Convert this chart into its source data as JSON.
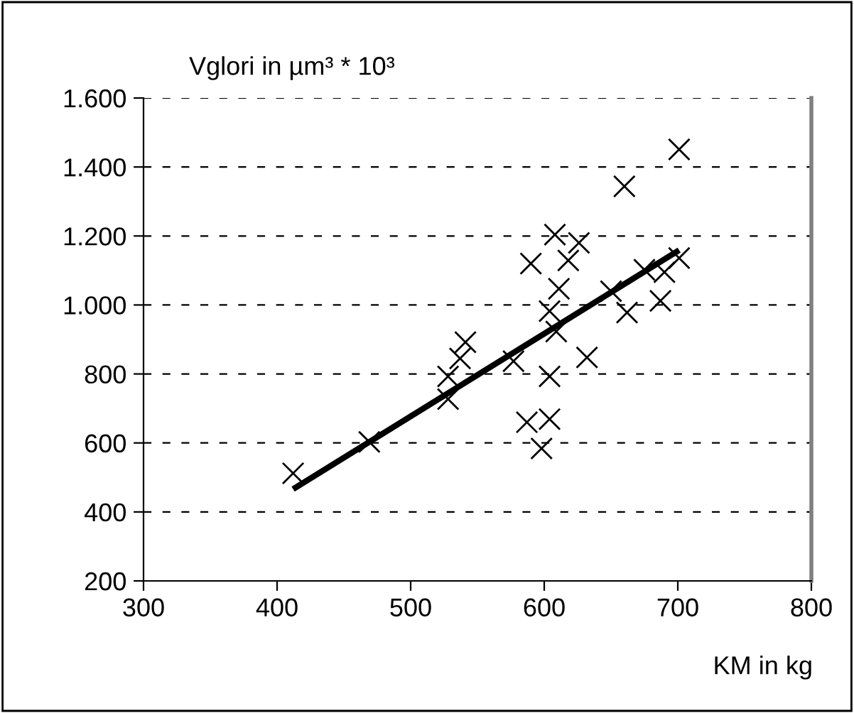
{
  "chart_data": {
    "type": "scatter",
    "ylabel": "Vglori in µm³ * 10³",
    "xlabel": "KM in kg",
    "xlim": [
      300,
      800
    ],
    "xticks": [
      300,
      400,
      500,
      600,
      700,
      800
    ],
    "ylim": [
      200,
      1600
    ],
    "yticks": [
      {
        "value": 200,
        "label": "200"
      },
      {
        "value": 400,
        "label": "400"
      },
      {
        "value": 600,
        "label": "600"
      },
      {
        "value": 800,
        "label": "800"
      },
      {
        "value": 1000,
        "label": "1.000"
      },
      {
        "value": 1200,
        "label": "1.200"
      },
      {
        "value": 1400,
        "label": "1.400"
      },
      {
        "value": 1600,
        "label": "1.600"
      }
    ],
    "grid": "y",
    "series": [
      {
        "marker": "cross",
        "color": "#000000",
        "x": [
          412,
          469,
          528,
          528,
          541,
          537,
          577,
          604,
          587,
          604,
          598,
          604,
          611,
          701,
          660,
          608,
          626,
          590,
          618,
          609,
          632,
          650,
          675,
          690,
          687,
          662,
          701
        ],
        "values": [
          512,
          603,
          793,
          727,
          892,
          845,
          837,
          793,
          660,
          669,
          584,
          982,
          1047,
          1451,
          1344,
          1204,
          1180,
          1120,
          1129,
          923,
          848,
          1040,
          1102,
          1095,
          1012,
          978,
          1136
        ]
      },
      {
        "type": "line",
        "color": "#000000",
        "x": [
          412,
          701
        ],
        "values": [
          466,
          1159
        ]
      }
    ]
  }
}
